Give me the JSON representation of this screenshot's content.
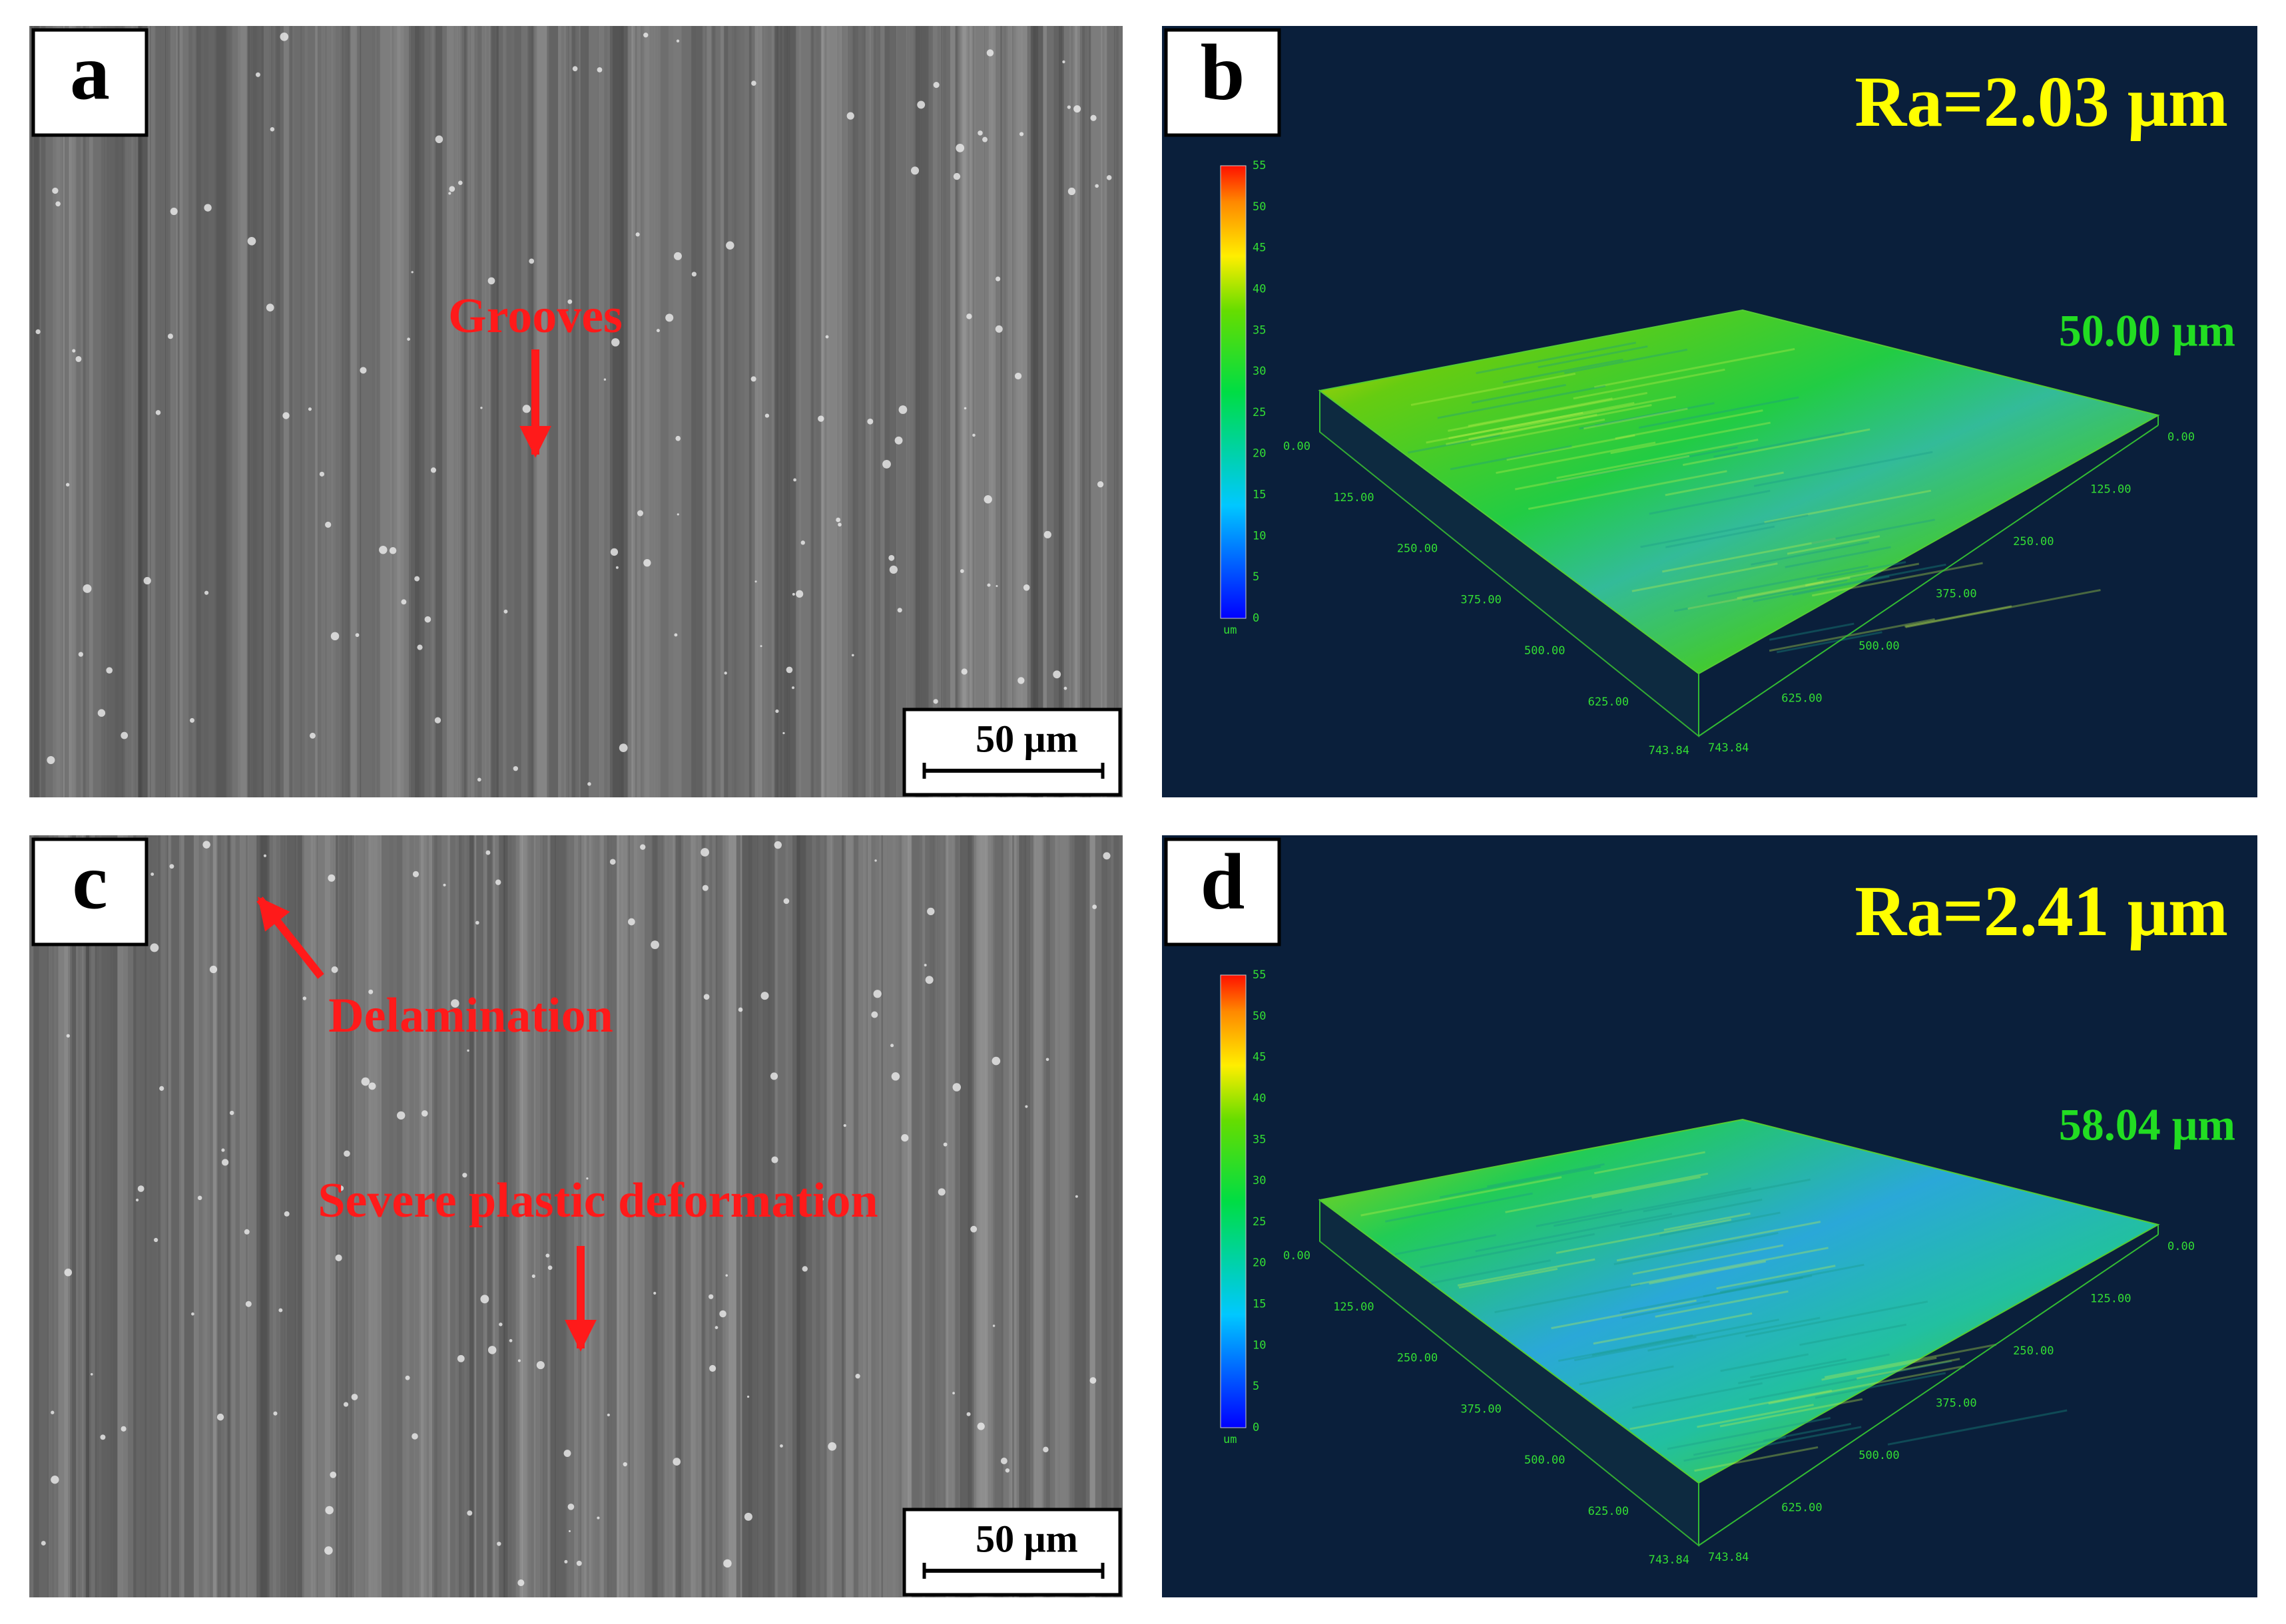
{
  "panels": [
    {
      "label": "a",
      "annotations": [
        "Grooves"
      ],
      "scale_bar": "50 μm"
    },
    {
      "label": "b",
      "roughness": "Ra=2.03 μm",
      "max_height": "50.00 μm",
      "colorbar_ticks": [
        0,
        5,
        10,
        15,
        20,
        25,
        30,
        35,
        40,
        45,
        50,
        55
      ],
      "colorbar_unit": "um",
      "x_axis_ticks": [
        "0.00",
        "125.00",
        "250.00",
        "375.00",
        "500.00",
        "625.00",
        "743.84"
      ],
      "y_axis_ticks": [
        "0.00",
        "125.00",
        "250.00",
        "375.00",
        "500.00",
        "625.00",
        "743.84"
      ]
    },
    {
      "label": "c",
      "annotations": [
        "Delamination",
        "Severe plastic deformation"
      ],
      "scale_bar": "50 μm"
    },
    {
      "label": "d",
      "roughness": "Ra=2.41 μm",
      "max_height": "58.04 μm",
      "colorbar_ticks": [
        0,
        5,
        10,
        15,
        20,
        25,
        30,
        35,
        40,
        45,
        50,
        55
      ],
      "colorbar_unit": "um",
      "x_axis_ticks": [
        "0.00",
        "125.00",
        "250.00",
        "375.00",
        "500.00",
        "625.00",
        "743.84"
      ],
      "y_axis_ticks": [
        "0.00",
        "125.00",
        "250.00",
        "375.00",
        "500.00",
        "625.00",
        "743.84"
      ]
    }
  ]
}
